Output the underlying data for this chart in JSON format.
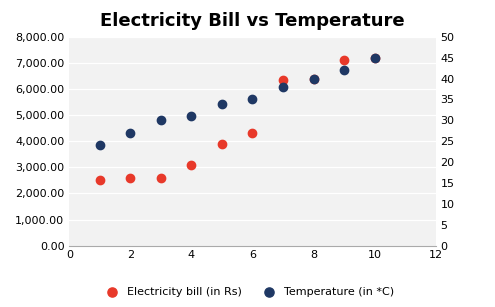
{
  "title": "Electricity Bill vs Temperature",
  "x_values": [
    1,
    2,
    3,
    4,
    5,
    6,
    7,
    8,
    9,
    10
  ],
  "electricity_bill": [
    2500,
    2600,
    2600,
    3100,
    3900,
    4300,
    6350,
    6400,
    7100,
    7200
  ],
  "temperature": [
    24,
    27,
    30,
    31,
    34,
    35,
    38,
    40,
    42,
    45
  ],
  "bill_color": "#E8392A",
  "temp_color": "#1F3864",
  "xlim": [
    0,
    12
  ],
  "ylim_left": [
    0,
    8000
  ],
  "ylim_right": [
    0,
    50
  ],
  "xticks": [
    0,
    2,
    4,
    6,
    8,
    10,
    12
  ],
  "yticks_left": [
    0,
    1000,
    2000,
    3000,
    4000,
    5000,
    6000,
    7000,
    8000
  ],
  "yticks_right": [
    0,
    5,
    10,
    15,
    20,
    25,
    30,
    35,
    40,
    45,
    50
  ],
  "legend_bill": "Electricity bill (in Rs)",
  "legend_temp": "Temperature (in *C)",
  "marker_size": 6,
  "bg_color": "#FFFFFF",
  "plot_bg": "#F2F2F2",
  "grid_color": "#FFFFFF",
  "title_fontsize": 13,
  "tick_fontsize": 8
}
